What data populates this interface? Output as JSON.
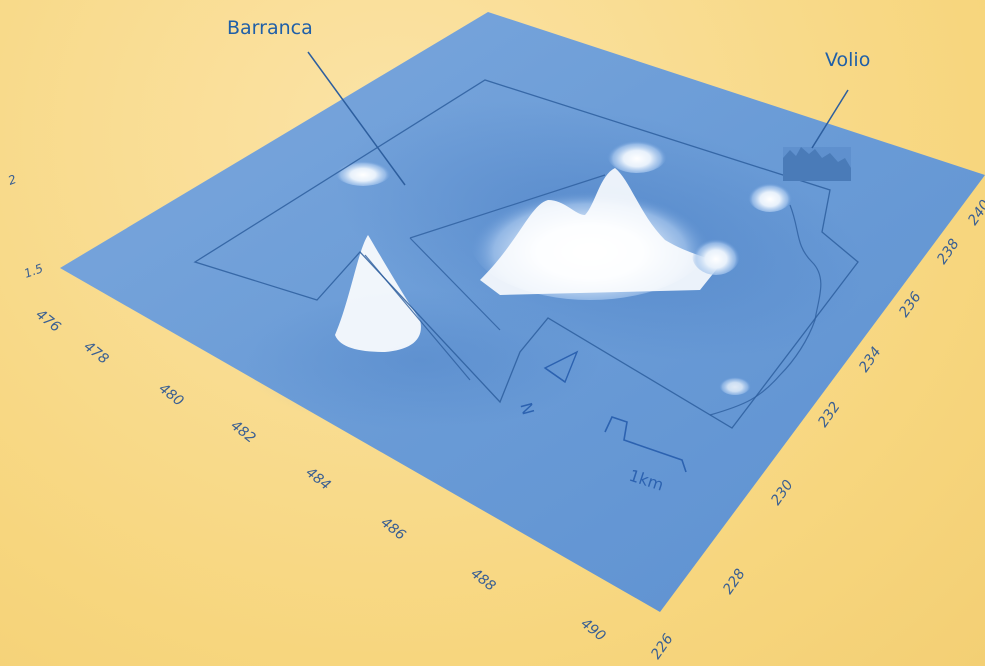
{
  "labels": {
    "barranca": "Barranca",
    "volio": "Volio",
    "north": "N",
    "scale": "1km"
  },
  "axes": {
    "x_ticks": [
      "476",
      "478",
      "480",
      "482",
      "484",
      "486",
      "488",
      "490"
    ],
    "y_ticks": [
      "226",
      "228",
      "230",
      "232",
      "234",
      "236",
      "238",
      "240"
    ],
    "z_ticks": [
      "1.5",
      "2"
    ]
  },
  "colors": {
    "background": "#f7d67e",
    "surface": "#6a9bd8",
    "peak": "#ffffff",
    "line": "#2d5e9e",
    "label": "#1f5fa8"
  }
}
